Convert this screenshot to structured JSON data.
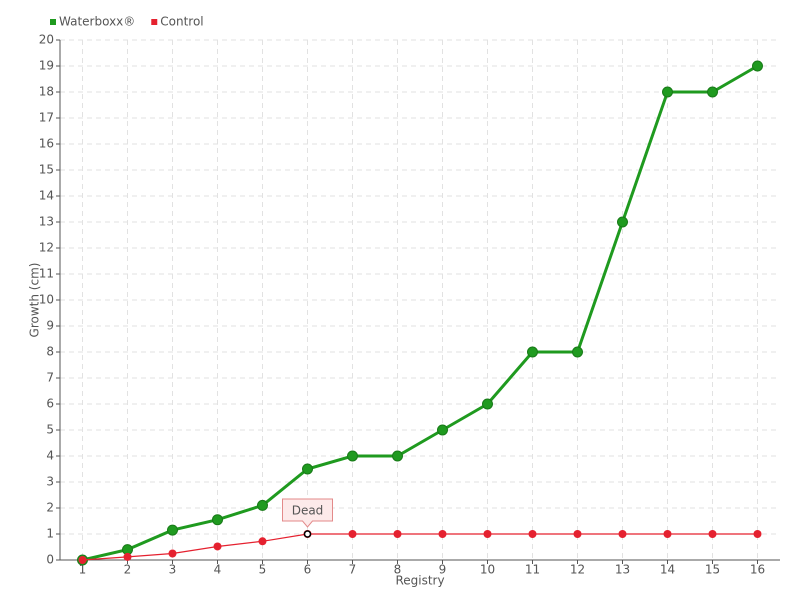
{
  "chart_data": {
    "type": "line",
    "x": [
      1,
      2,
      3,
      4,
      5,
      6,
      7,
      8,
      9,
      10,
      11,
      12,
      13,
      14,
      15,
      16
    ],
    "xlim": [
      0.5,
      16.5
    ],
    "xticks": [
      1,
      2,
      3,
      4,
      5,
      6,
      7,
      8,
      9,
      10,
      11,
      12,
      13,
      14,
      15,
      16
    ],
    "ylim": [
      0,
      20
    ],
    "yticks": [
      0,
      1,
      2,
      3,
      4,
      5,
      6,
      7,
      8,
      9,
      10,
      11,
      12,
      13,
      14,
      15,
      16,
      17,
      18,
      19,
      20
    ],
    "x_label": "Registry",
    "y_label": "Growth (cm)",
    "grid": true,
    "legend": "top-left",
    "series": [
      {
        "name": "Waterboxx®",
        "color": "#1f9a1f",
        "values": [
          0,
          0.4,
          1.15,
          1.55,
          2.1,
          3.5,
          4,
          4,
          5,
          6,
          8,
          8,
          13,
          18,
          18,
          19
        ]
      },
      {
        "name": "Control",
        "color": "#e5212f",
        "values": [
          0,
          0.12,
          0.25,
          0.52,
          0.72,
          1,
          1,
          1,
          1,
          1,
          1,
          1,
          1,
          1,
          1,
          1
        ]
      }
    ],
    "annotations": [
      {
        "text": "Dead",
        "x": 6,
        "y": 1
      }
    ]
  }
}
